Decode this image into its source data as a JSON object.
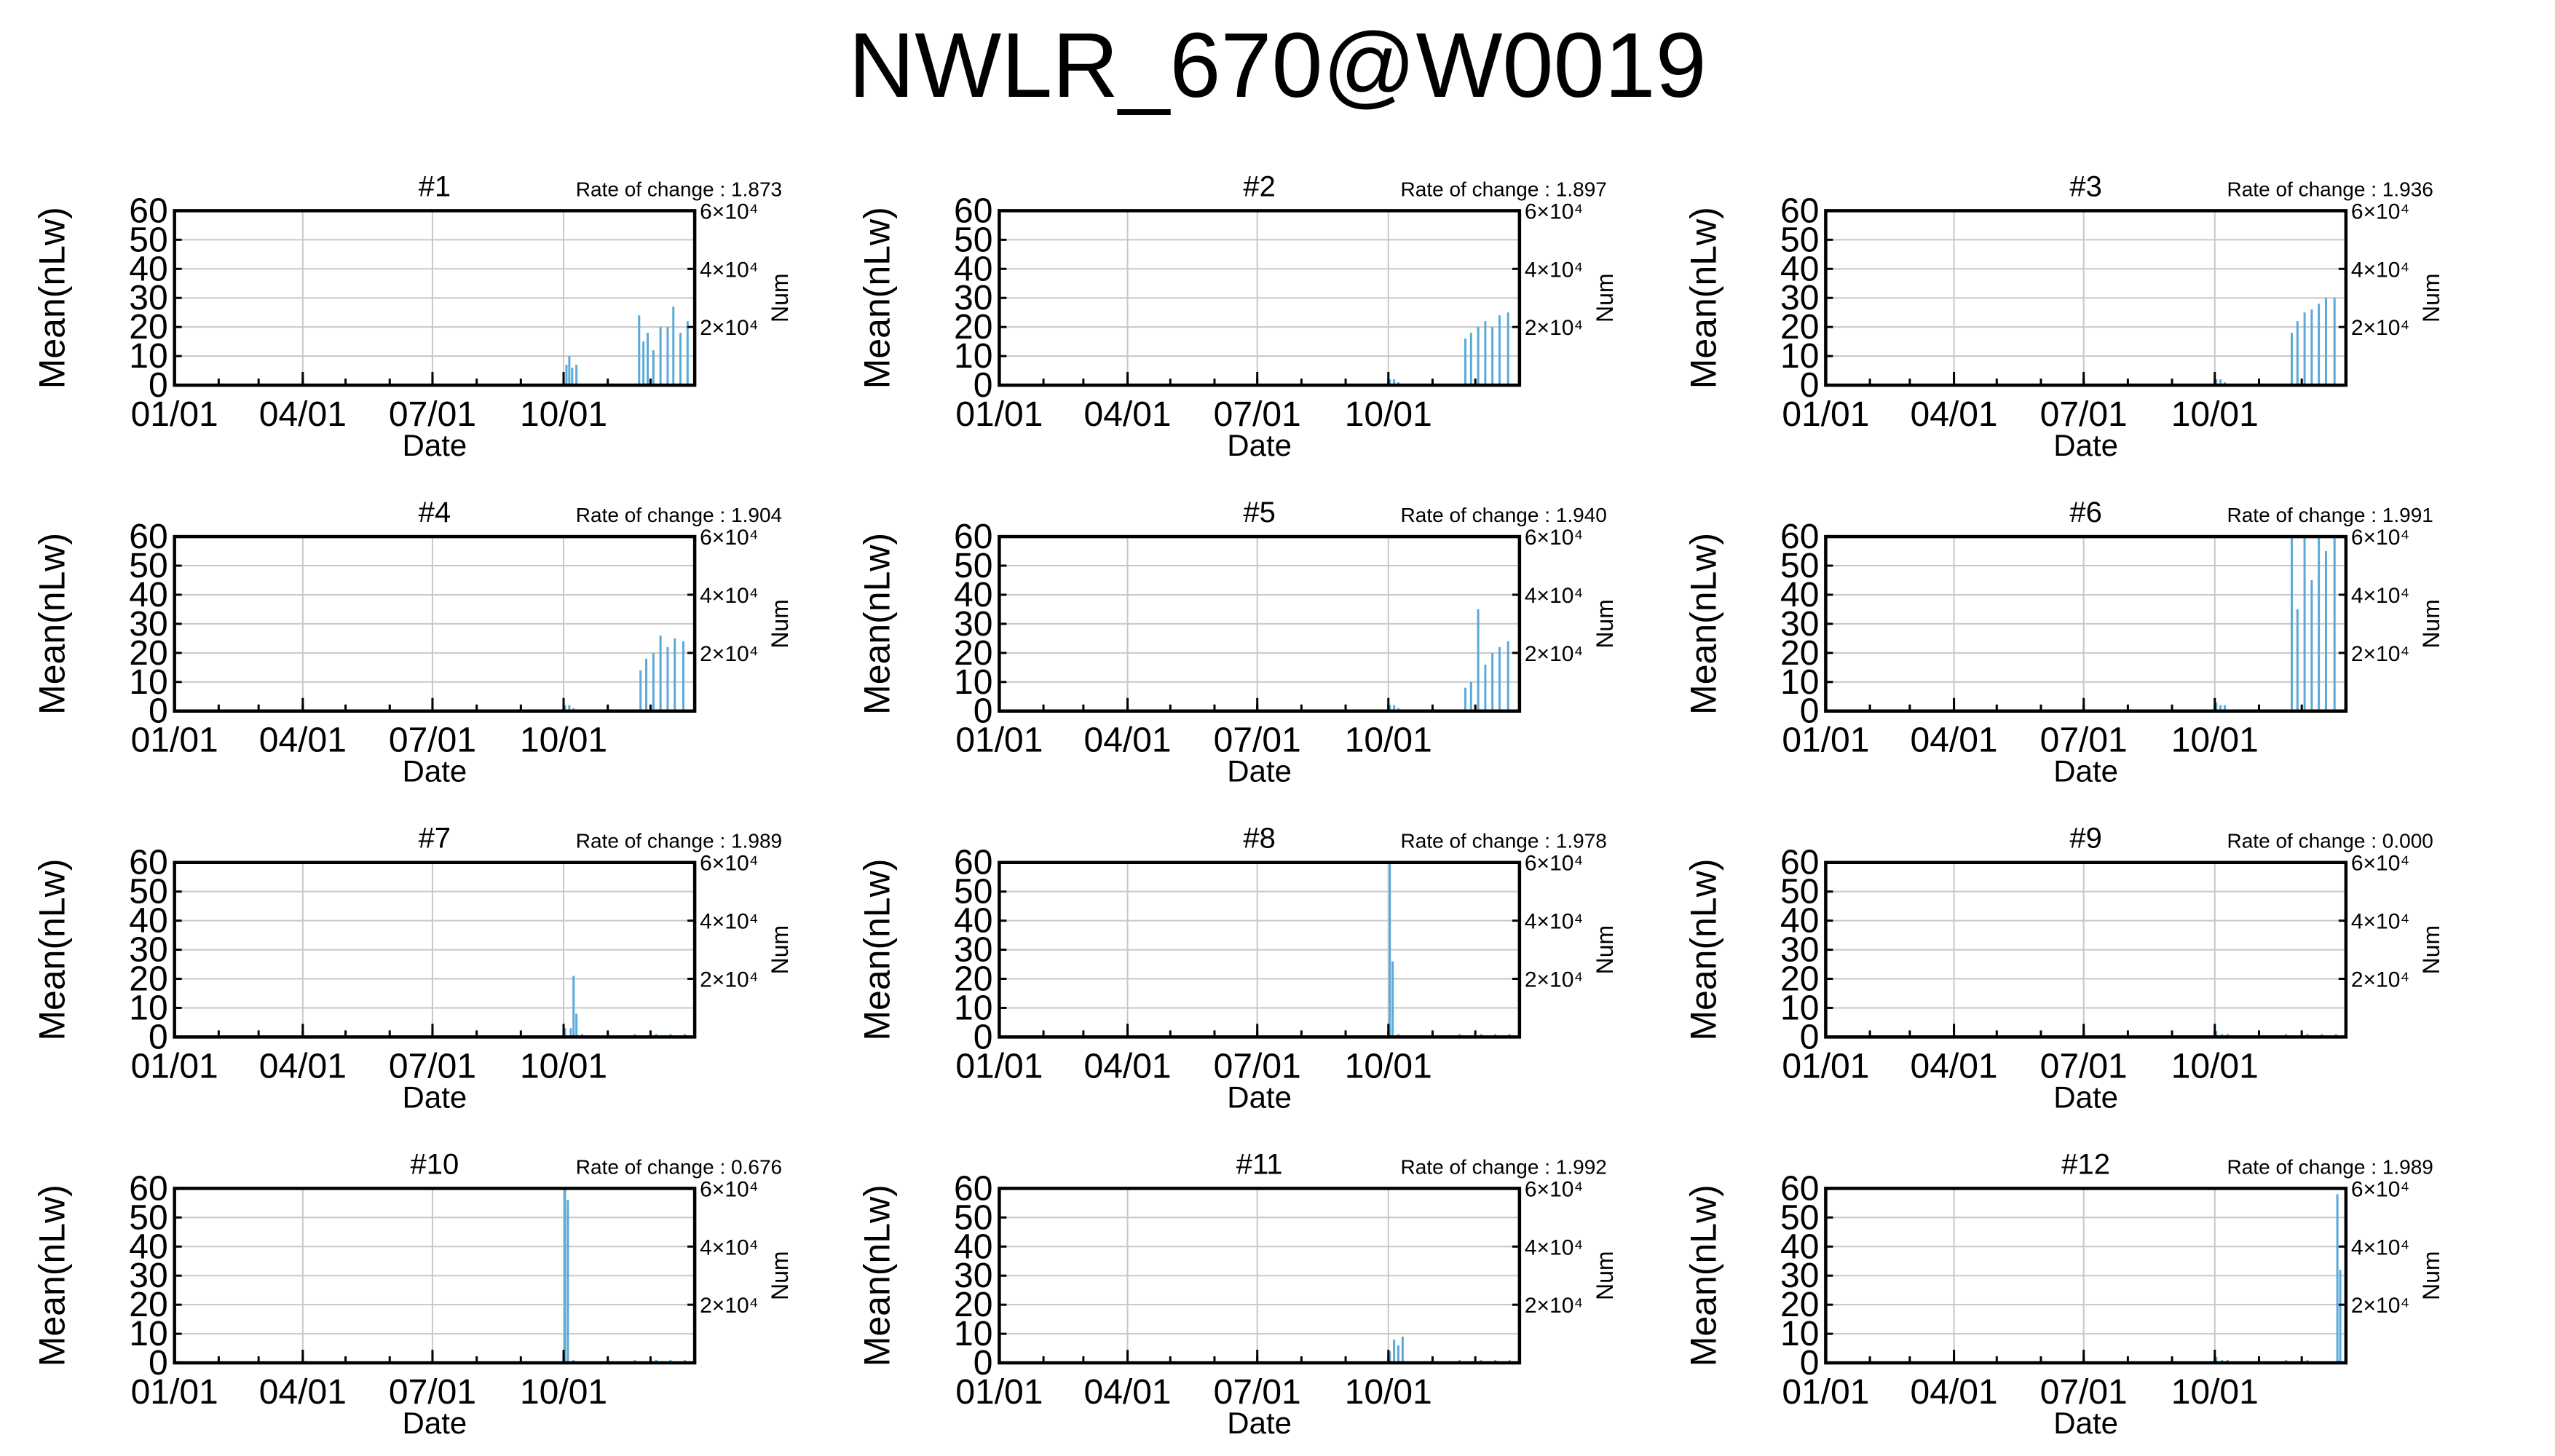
{
  "title": "NWLR_670@W0019",
  "chart_data": [
    {
      "type": "bar",
      "title": "#1",
      "rate_label": "Rate of change : 1.873",
      "xlabel": "Date",
      "ylabel": "Mean(nLw)",
      "y2label": "Num",
      "xticks": [
        "01/01",
        "04/01",
        "07/01",
        "10/01"
      ],
      "yticks": [
        "0",
        "10",
        "20",
        "30",
        "40",
        "50",
        "60"
      ],
      "y2ticks": [
        "2×10⁴",
        "4×10⁴",
        "6×10⁴"
      ],
      "ylim": [
        0,
        60
      ],
      "grid": true,
      "bar_color": "#5aaad8",
      "values": [
        {
          "x": "2021-10-01",
          "y": 4
        },
        {
          "x": "2021-10-03",
          "y": 7
        },
        {
          "x": "2021-10-05",
          "y": 10
        },
        {
          "x": "2021-10-07",
          "y": 6
        },
        {
          "x": "2021-10-10",
          "y": 7
        },
        {
          "x": "2021-11-23",
          "y": 24
        },
        {
          "x": "2021-11-26",
          "y": 15
        },
        {
          "x": "2021-11-29",
          "y": 18
        },
        {
          "x": "2021-12-03",
          "y": 12
        },
        {
          "x": "2021-12-08",
          "y": 20
        },
        {
          "x": "2021-12-13",
          "y": 20
        },
        {
          "x": "2021-12-17",
          "y": 27
        },
        {
          "x": "2021-12-22",
          "y": 18
        },
        {
          "x": "2021-12-27",
          "y": 22
        }
      ]
    },
    {
      "type": "bar",
      "title": "#2",
      "rate_label": "Rate of change : 1.897",
      "xlabel": "Date",
      "ylabel": "Mean(nLw)",
      "y2label": "Num",
      "xticks": [
        "01/01",
        "04/01",
        "07/01",
        "10/01"
      ],
      "yticks": [
        "0",
        "10",
        "20",
        "30",
        "40",
        "50",
        "60"
      ],
      "y2ticks": [
        "2×10⁴",
        "4×10⁴",
        "6×10⁴"
      ],
      "ylim": [
        0,
        60
      ],
      "grid": true,
      "bar_color": "#5aaad8",
      "values": [
        {
          "x": "2021-10-02",
          "y": 2
        },
        {
          "x": "2021-10-05",
          "y": 2
        },
        {
          "x": "2021-10-08",
          "y": 1
        },
        {
          "x": "2021-11-24",
          "y": 16
        },
        {
          "x": "2021-11-28",
          "y": 18
        },
        {
          "x": "2021-12-03",
          "y": 20
        },
        {
          "x": "2021-12-08",
          "y": 22
        },
        {
          "x": "2021-12-13",
          "y": 20
        },
        {
          "x": "2021-12-18",
          "y": 24
        },
        {
          "x": "2021-12-24",
          "y": 25
        }
      ]
    },
    {
      "type": "bar",
      "title": "#3",
      "rate_label": "Rate of change : 1.936",
      "xlabel": "Date",
      "ylabel": "Mean(nLw)",
      "y2label": "Num",
      "xticks": [
        "01/01",
        "04/01",
        "07/01",
        "10/01"
      ],
      "yticks": [
        "0",
        "10",
        "20",
        "30",
        "40",
        "50",
        "60"
      ],
      "y2ticks": [
        "2×10⁴",
        "4×10⁴",
        "6×10⁴"
      ],
      "ylim": [
        0,
        60
      ],
      "grid": true,
      "bar_color": "#5aaad8",
      "values": [
        {
          "x": "2021-10-02",
          "y": 2
        },
        {
          "x": "2021-10-05",
          "y": 2
        },
        {
          "x": "2021-10-08",
          "y": 1
        },
        {
          "x": "2021-11-24",
          "y": 18
        },
        {
          "x": "2021-11-28",
          "y": 22
        },
        {
          "x": "2021-12-03",
          "y": 25
        },
        {
          "x": "2021-12-08",
          "y": 26
        },
        {
          "x": "2021-12-13",
          "y": 28
        },
        {
          "x": "2021-12-18",
          "y": 30
        },
        {
          "x": "2021-12-24",
          "y": 30
        }
      ]
    },
    {
      "type": "bar",
      "title": "#4",
      "rate_label": "Rate of change : 1.904",
      "xlabel": "Date",
      "ylabel": "Mean(nLw)",
      "y2label": "Num",
      "xticks": [
        "01/01",
        "04/01",
        "07/01",
        "10/01"
      ],
      "yticks": [
        "0",
        "10",
        "20",
        "30",
        "40",
        "50",
        "60"
      ],
      "y2ticks": [
        "2×10⁴",
        "4×10⁴",
        "6×10⁴"
      ],
      "ylim": [
        0,
        60
      ],
      "grid": true,
      "bar_color": "#5aaad8",
      "values": [
        {
          "x": "2021-10-02",
          "y": 2
        },
        {
          "x": "2021-10-05",
          "y": 2
        },
        {
          "x": "2021-10-08",
          "y": 1
        },
        {
          "x": "2021-11-24",
          "y": 14
        },
        {
          "x": "2021-11-28",
          "y": 18
        },
        {
          "x": "2021-12-03",
          "y": 20
        },
        {
          "x": "2021-12-08",
          "y": 26
        },
        {
          "x": "2021-12-13",
          "y": 22
        },
        {
          "x": "2021-12-18",
          "y": 25
        },
        {
          "x": "2021-12-24",
          "y": 24
        }
      ]
    },
    {
      "type": "bar",
      "title": "#5",
      "rate_label": "Rate of change : 1.940",
      "xlabel": "Date",
      "ylabel": "Mean(nLw)",
      "y2label": "Num",
      "xticks": [
        "01/01",
        "04/01",
        "07/01",
        "10/01"
      ],
      "yticks": [
        "0",
        "10",
        "20",
        "30",
        "40",
        "50",
        "60"
      ],
      "y2ticks": [
        "2×10⁴",
        "4×10⁴",
        "6×10⁴"
      ],
      "ylim": [
        0,
        60
      ],
      "grid": true,
      "bar_color": "#5aaad8",
      "values": [
        {
          "x": "2021-10-02",
          "y": 2
        },
        {
          "x": "2021-10-05",
          "y": 2
        },
        {
          "x": "2021-10-08",
          "y": 1
        },
        {
          "x": "2021-11-24",
          "y": 8
        },
        {
          "x": "2021-11-28",
          "y": 10
        },
        {
          "x": "2021-12-03",
          "y": 35
        },
        {
          "x": "2021-12-08",
          "y": 16
        },
        {
          "x": "2021-12-13",
          "y": 20
        },
        {
          "x": "2021-12-18",
          "y": 22
        },
        {
          "x": "2021-12-24",
          "y": 24
        }
      ]
    },
    {
      "type": "bar",
      "title": "#6",
      "rate_label": "Rate of change : 1.991",
      "xlabel": "Date",
      "ylabel": "Mean(nLw)",
      "y2label": "Num",
      "xticks": [
        "01/01",
        "04/01",
        "07/01",
        "10/01"
      ],
      "yticks": [
        "0",
        "10",
        "20",
        "30",
        "40",
        "50",
        "60"
      ],
      "y2ticks": [
        "2×10⁴",
        "4×10⁴",
        "6×10⁴"
      ],
      "ylim": [
        0,
        60
      ],
      "grid": true,
      "bar_color": "#5aaad8",
      "values": [
        {
          "x": "2021-10-02",
          "y": 3
        },
        {
          "x": "2021-10-05",
          "y": 2
        },
        {
          "x": "2021-10-08",
          "y": 2
        },
        {
          "x": "2021-11-24",
          "y": 60
        },
        {
          "x": "2021-11-28",
          "y": 35
        },
        {
          "x": "2021-12-03",
          "y": 60
        },
        {
          "x": "2021-12-08",
          "y": 45
        },
        {
          "x": "2021-12-13",
          "y": 60
        },
        {
          "x": "2021-12-18",
          "y": 55
        },
        {
          "x": "2021-12-24",
          "y": 60
        }
      ]
    },
    {
      "type": "bar",
      "title": "#7",
      "rate_label": "Rate of change : 1.989",
      "xlabel": "Date",
      "ylabel": "Mean(nLw)",
      "y2label": "Num",
      "xticks": [
        "01/01",
        "04/01",
        "07/01",
        "10/01"
      ],
      "yticks": [
        "0",
        "10",
        "20",
        "30",
        "40",
        "50",
        "60"
      ],
      "y2ticks": [
        "2×10⁴",
        "4×10⁴",
        "6×10⁴"
      ],
      "ylim": [
        0,
        60
      ],
      "grid": true,
      "bar_color": "#5aaad8",
      "values": [
        {
          "x": "2021-10-02",
          "y": 3
        },
        {
          "x": "2021-10-06",
          "y": 3
        },
        {
          "x": "2021-10-08",
          "y": 21
        },
        {
          "x": "2021-10-10",
          "y": 8
        },
        {
          "x": "2021-10-14",
          "y": 1
        },
        {
          "x": "2021-11-01",
          "y": 1
        },
        {
          "x": "2021-11-20",
          "y": 1
        },
        {
          "x": "2021-12-05",
          "y": 1
        },
        {
          "x": "2021-12-15",
          "y": 1
        },
        {
          "x": "2021-12-25",
          "y": 1
        }
      ]
    },
    {
      "type": "bar",
      "title": "#8",
      "rate_label": "Rate of change : 1.978",
      "xlabel": "Date",
      "ylabel": "Mean(nLw)",
      "y2label": "Num",
      "xticks": [
        "01/01",
        "04/01",
        "07/01",
        "10/01"
      ],
      "yticks": [
        "0",
        "10",
        "20",
        "30",
        "40",
        "50",
        "60"
      ],
      "y2ticks": [
        "2×10⁴",
        "4×10⁴",
        "6×10⁴"
      ],
      "ylim": [
        0,
        60
      ],
      "grid": true,
      "bar_color": "#5aaad8",
      "values": [
        {
          "x": "2021-10-02",
          "y": 60
        },
        {
          "x": "2021-10-04",
          "y": 26
        },
        {
          "x": "2021-10-08",
          "y": 1
        },
        {
          "x": "2021-11-01",
          "y": 1
        },
        {
          "x": "2021-11-20",
          "y": 1
        },
        {
          "x": "2021-12-05",
          "y": 1
        },
        {
          "x": "2021-12-15",
          "y": 1
        },
        {
          "x": "2021-12-25",
          "y": 1
        }
      ]
    },
    {
      "type": "bar",
      "title": "#9",
      "rate_label": "Rate of change : 0.000",
      "xlabel": "Date",
      "ylabel": "Mean(nLw)",
      "y2label": "Num",
      "xticks": [
        "01/01",
        "04/01",
        "07/01",
        "10/01"
      ],
      "yticks": [
        "0",
        "10",
        "20",
        "30",
        "40",
        "50",
        "60"
      ],
      "y2ticks": [
        "2×10⁴",
        "4×10⁴",
        "6×10⁴"
      ],
      "ylim": [
        0,
        60
      ],
      "grid": true,
      "bar_color": "#5aaad8",
      "values": [
        {
          "x": "2021-10-02",
          "y": 2
        },
        {
          "x": "2021-10-06",
          "y": 1
        },
        {
          "x": "2021-10-10",
          "y": 1
        },
        {
          "x": "2021-11-01",
          "y": 1
        },
        {
          "x": "2021-11-20",
          "y": 1
        },
        {
          "x": "2021-12-05",
          "y": 1
        },
        {
          "x": "2021-12-15",
          "y": 1
        },
        {
          "x": "2021-12-25",
          "y": 1
        }
      ]
    },
    {
      "type": "bar",
      "title": "#10",
      "rate_label": "Rate of change : 0.676",
      "xlabel": "Date",
      "ylabel": "Mean(nLw)",
      "y2label": "Num",
      "xticks": [
        "01/01",
        "04/01",
        "07/01",
        "10/01"
      ],
      "yticks": [
        "0",
        "10",
        "20",
        "30",
        "40",
        "50",
        "60"
      ],
      "y2ticks": [
        "2×10⁴",
        "4×10⁴",
        "6×10⁴"
      ],
      "ylim": [
        0,
        60
      ],
      "grid": true,
      "bar_color": "#5aaad8",
      "values": [
        {
          "x": "2021-10-02",
          "y": 60
        },
        {
          "x": "2021-10-04",
          "y": 56
        },
        {
          "x": "2021-10-08",
          "y": 1
        },
        {
          "x": "2021-11-01",
          "y": 1
        },
        {
          "x": "2021-11-20",
          "y": 1
        },
        {
          "x": "2021-12-05",
          "y": 1
        },
        {
          "x": "2021-12-15",
          "y": 1
        },
        {
          "x": "2021-12-25",
          "y": 1
        }
      ]
    },
    {
      "type": "bar",
      "title": "#11",
      "rate_label": "Rate of change : 1.992",
      "xlabel": "Date",
      "ylabel": "Mean(nLw)",
      "y2label": "Num",
      "xticks": [
        "01/01",
        "04/01",
        "07/01",
        "10/01"
      ],
      "yticks": [
        "0",
        "10",
        "20",
        "30",
        "40",
        "50",
        "60"
      ],
      "y2ticks": [
        "2×10⁴",
        "4×10⁴",
        "6×10⁴"
      ],
      "ylim": [
        0,
        60
      ],
      "grid": true,
      "bar_color": "#5aaad8",
      "values": [
        {
          "x": "2021-10-02",
          "y": 4
        },
        {
          "x": "2021-10-05",
          "y": 8
        },
        {
          "x": "2021-10-08",
          "y": 6
        },
        {
          "x": "2021-10-11",
          "y": 9
        },
        {
          "x": "2021-11-01",
          "y": 1
        },
        {
          "x": "2021-11-20",
          "y": 1
        },
        {
          "x": "2021-12-05",
          "y": 1
        },
        {
          "x": "2021-12-15",
          "y": 1
        },
        {
          "x": "2021-12-25",
          "y": 1
        }
      ]
    },
    {
      "type": "bar",
      "title": "#12",
      "rate_label": "Rate of change : 1.989",
      "xlabel": "Date",
      "ylabel": "Mean(nLw)",
      "y2label": "Num",
      "xticks": [
        "01/01",
        "04/01",
        "07/01",
        "10/01"
      ],
      "yticks": [
        "0",
        "10",
        "20",
        "30",
        "40",
        "50",
        "60"
      ],
      "y2ticks": [
        "2×10⁴",
        "4×10⁴",
        "6×10⁴"
      ],
      "ylim": [
        0,
        60
      ],
      "grid": true,
      "bar_color": "#5aaad8",
      "values": [
        {
          "x": "2021-10-02",
          "y": 2
        },
        {
          "x": "2021-10-06",
          "y": 1
        },
        {
          "x": "2021-10-10",
          "y": 1
        },
        {
          "x": "2021-11-01",
          "y": 1
        },
        {
          "x": "2021-11-20",
          "y": 1
        },
        {
          "x": "2021-12-05",
          "y": 1
        },
        {
          "x": "2021-12-26",
          "y": 58
        },
        {
          "x": "2021-12-28",
          "y": 32
        }
      ]
    }
  ]
}
